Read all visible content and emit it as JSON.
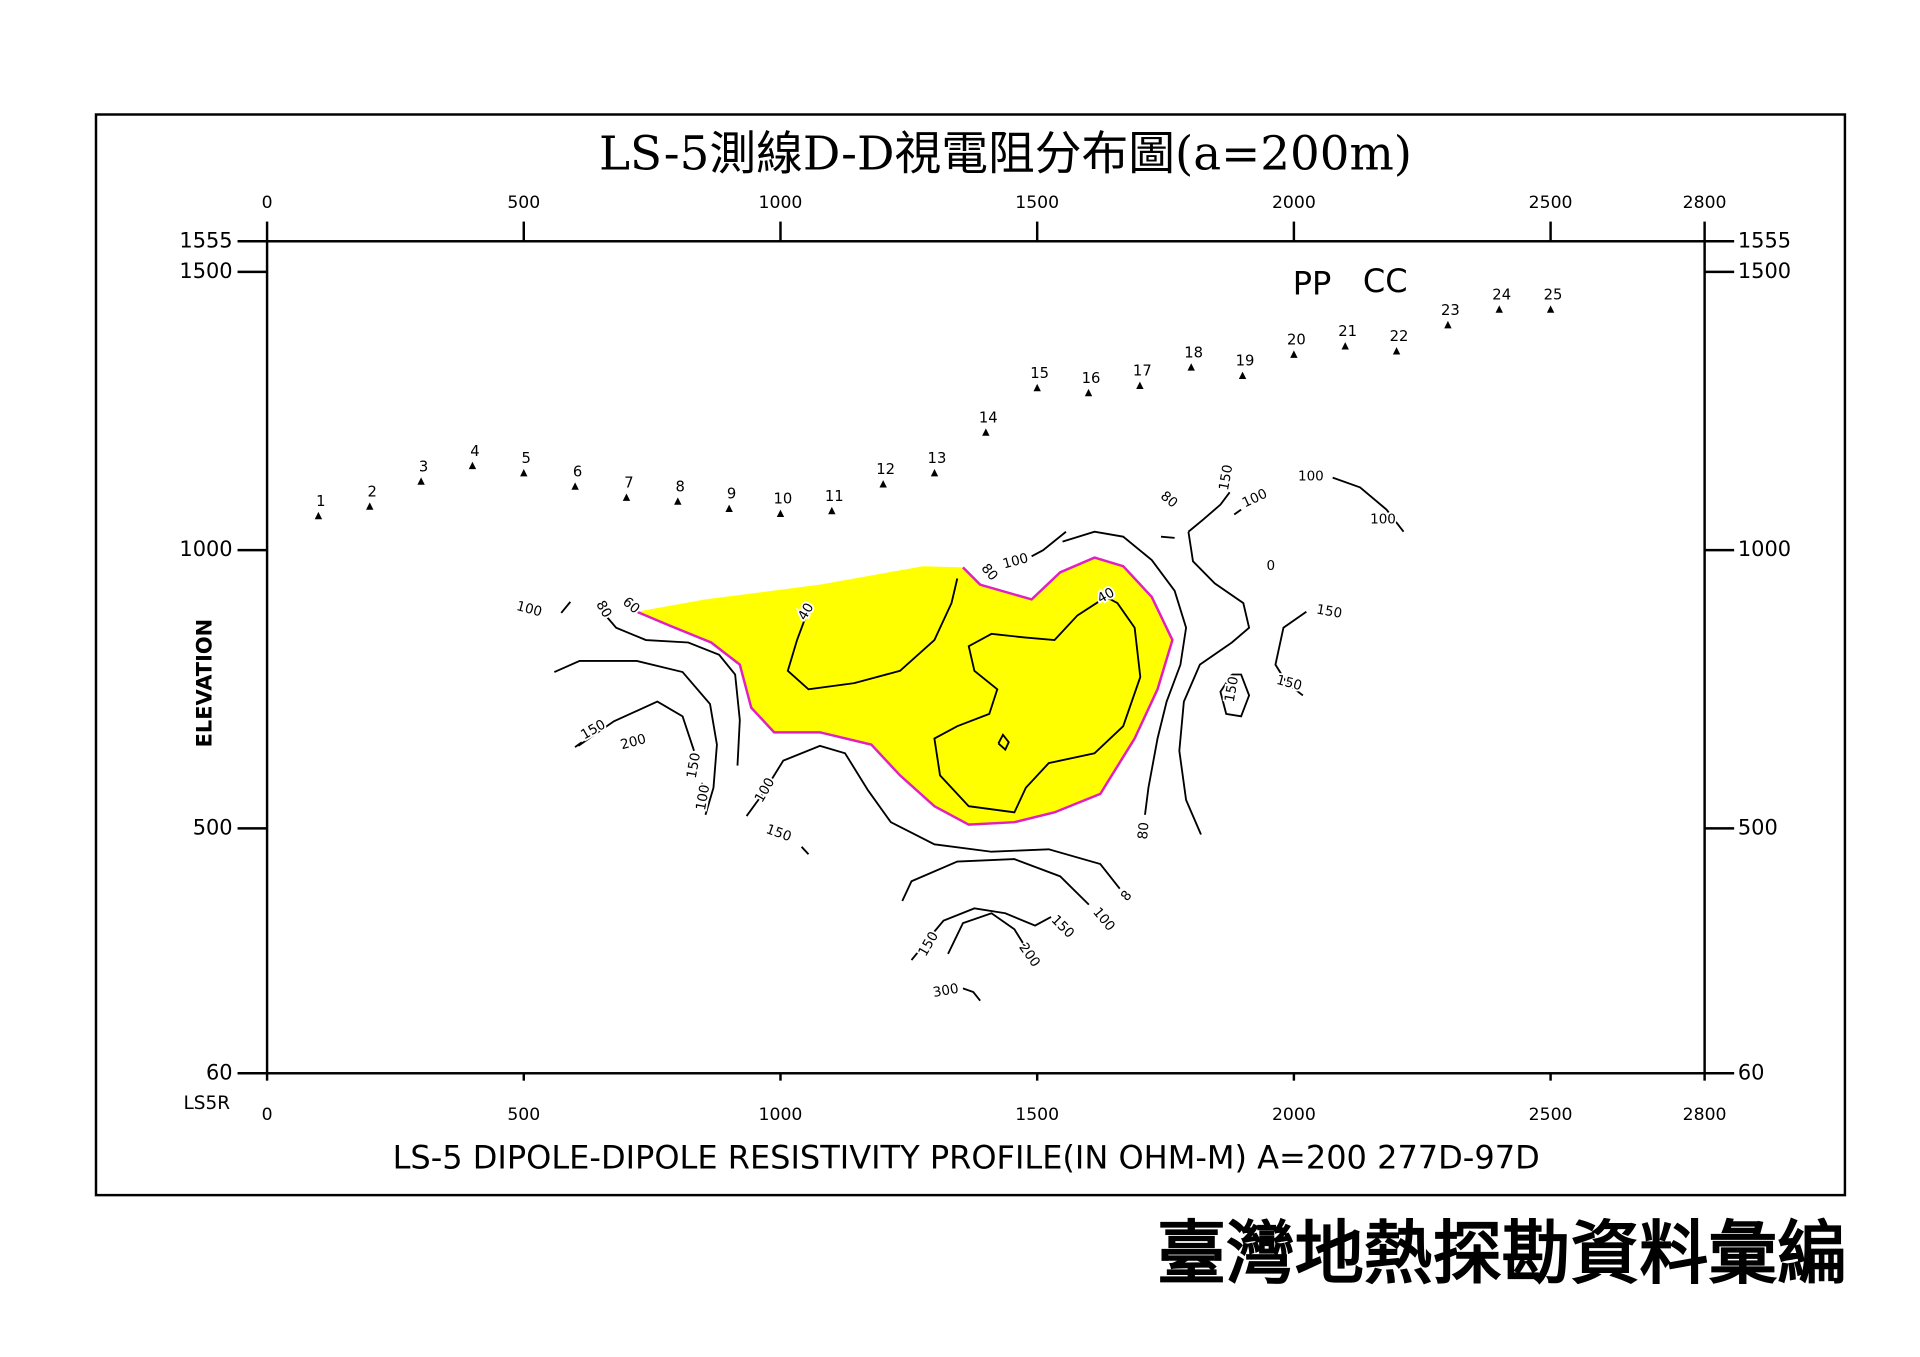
{
  "title": "LS-5測線D-D視電阻分布圖(a=200m)",
  "subtitle": "LS-5  DIPOLE-DIPOLE  RESISTIVITY PROFILE(IN  OHM-M)  A=200  277D-97D",
  "footer": "臺灣地熱探勘資料彙編",
  "chart_data": {
    "type": "contour",
    "y_label": "ELEVATION",
    "line_name": "LS5R",
    "xlim": [
      0,
      2800
    ],
    "xticks": [
      0,
      500,
      1000,
      1500,
      2000,
      2500,
      2800
    ],
    "ylim": [
      60,
      1555
    ],
    "yticks": [
      60,
      500,
      1000,
      1500,
      1555
    ],
    "stations": {
      "labels": [
        1,
        2,
        3,
        4,
        5,
        6,
        7,
        8,
        9,
        10,
        11,
        12,
        13,
        14,
        15,
        16,
        17,
        18,
        19,
        20,
        21,
        22,
        23,
        24,
        25
      ],
      "x": [
        100,
        200,
        300,
        400,
        500,
        600,
        700,
        800,
        900,
        1000,
        1100,
        1200,
        1300,
        1400,
        1500,
        1600,
        1700,
        1800,
        1900,
        2000,
        2100,
        2200,
        2300,
        2400,
        2500
      ],
      "elevation": [
        1060,
        1077,
        1122,
        1150,
        1137,
        1113,
        1093,
        1086,
        1073,
        1064,
        1069,
        1117,
        1137,
        1210,
        1290,
        1281,
        1294,
        1327,
        1312,
        1350,
        1365,
        1356,
        1403,
        1431,
        1431
      ]
    },
    "annotations": [
      "PP",
      "CC"
    ],
    "fill_color": "#ffff00",
    "line_color": "#e020c0",
    "contours": [
      100,
      80,
      60,
      40,
      40,
      150,
      200,
      150,
      100,
      100,
      150,
      8,
      100,
      150,
      150,
      200,
      300,
      80,
      100,
      80,
      150,
      80,
      100,
      100,
      100,
      0,
      150,
      150,
      150
    ]
  }
}
